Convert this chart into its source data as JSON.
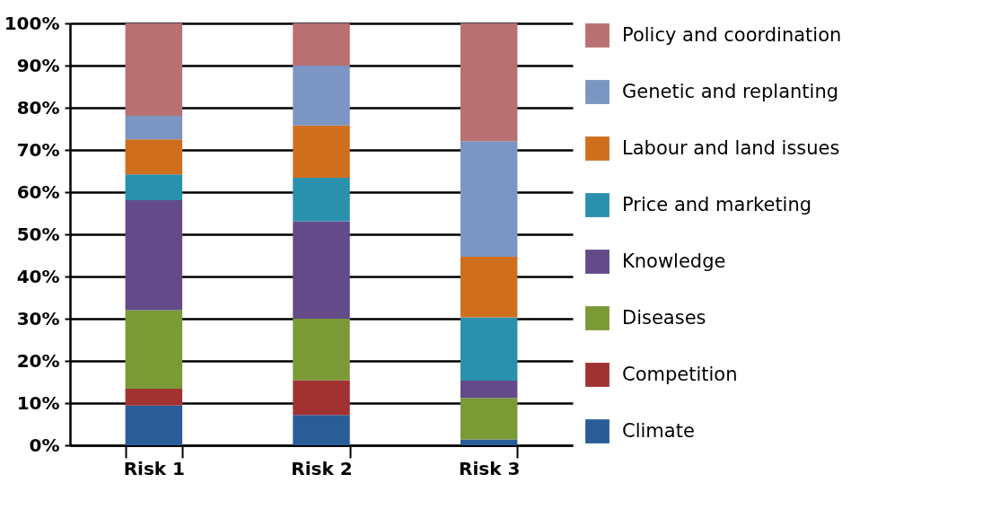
{
  "chart_data": {
    "type": "bar",
    "stacked": true,
    "categories": [
      "Risk 1",
      "Risk 2",
      "Risk 3"
    ],
    "series": [
      {
        "name": "Climate",
        "color": "#2a5d97",
        "values": [
          9.4,
          7.2,
          1.4
        ]
      },
      {
        "name": "Competition",
        "color": "#a23232",
        "values": [
          4.0,
          8.2,
          0
        ]
      },
      {
        "name": "Diseases",
        "color": "#7a9a36",
        "values": [
          18.6,
          14.6,
          9.8
        ]
      },
      {
        "name": "Knowledge",
        "color": "#654a8a",
        "values": [
          26.1,
          23.1,
          4.1
        ]
      },
      {
        "name": "Price and marketing",
        "color": "#2a91ad",
        "values": [
          6.1,
          10.3,
          15.0
        ]
      },
      {
        "name": "Labour and land issues",
        "color": "#cf6f1e",
        "values": [
          8.3,
          12.4,
          14.4
        ]
      },
      {
        "name": "Genetic and replanting",
        "color": "#7b96c2",
        "values": [
          5.6,
          14.2,
          27.4
        ]
      },
      {
        "name": "Policy and coordination",
        "color": "#b87070",
        "values": [
          21.9,
          10.0,
          27.9
        ]
      }
    ],
    "ylim": [
      0,
      100
    ],
    "yticks": [
      {
        "value": 0,
        "label": "0%"
      },
      {
        "value": 10,
        "label": "10%"
      },
      {
        "value": 20,
        "label": "20%"
      },
      {
        "value": 30,
        "label": "30%"
      },
      {
        "value": 40,
        "label": "40%"
      },
      {
        "value": 50,
        "label": "50%"
      },
      {
        "value": 60,
        "label": "60%"
      },
      {
        "value": 70,
        "label": "70%"
      },
      {
        "value": 80,
        "label": "80%"
      },
      {
        "value": 90,
        "label": "90%"
      },
      {
        "value": 100,
        "label": "100%"
      }
    ],
    "grid": "y",
    "legend": "right"
  }
}
